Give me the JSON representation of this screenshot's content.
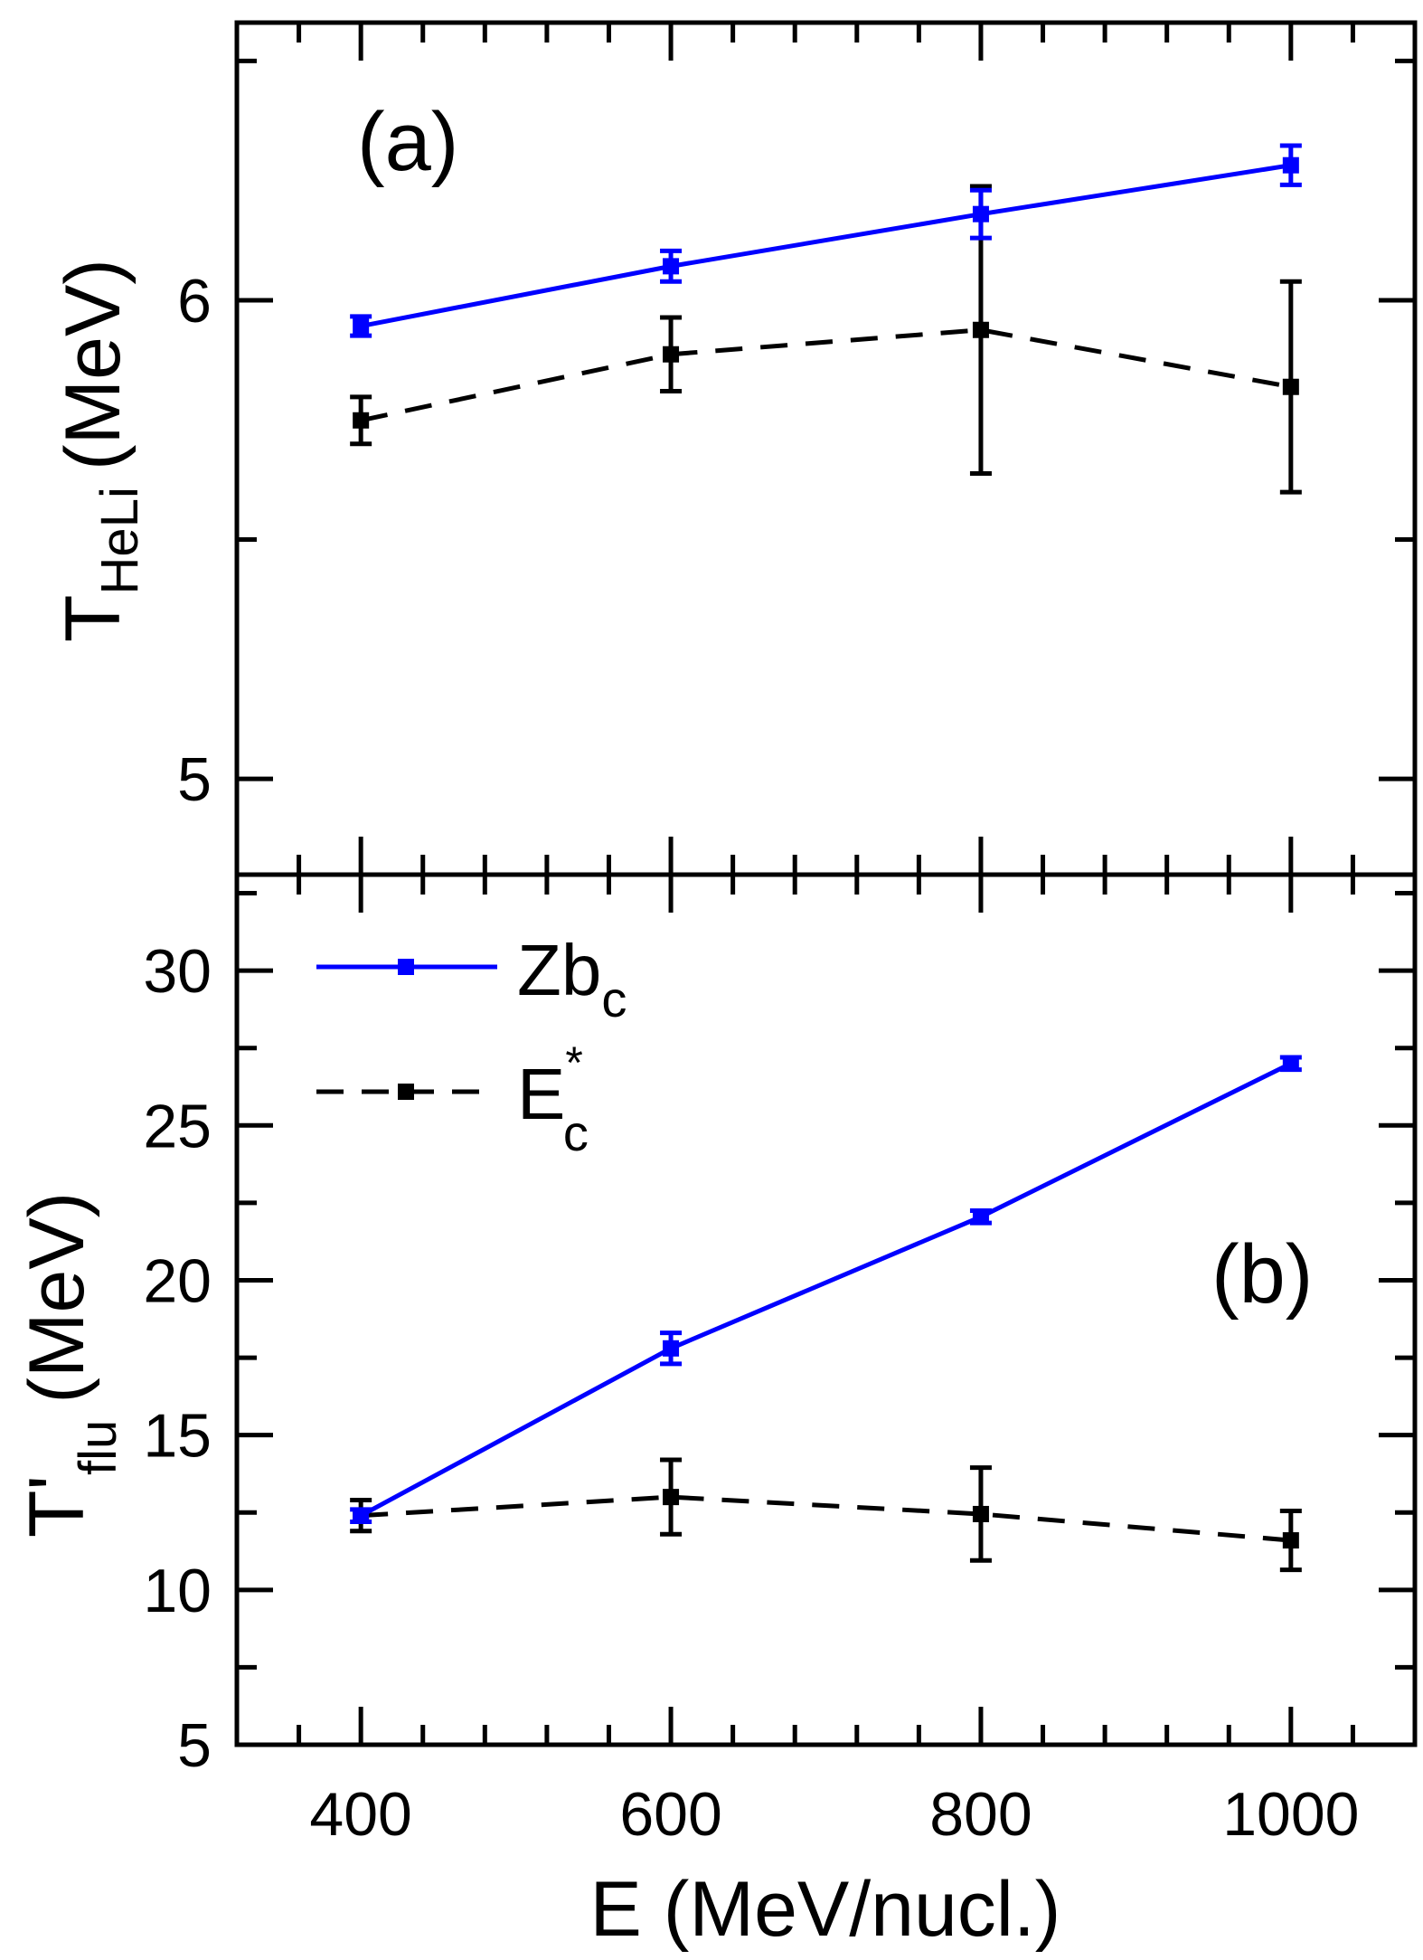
{
  "chart_data": [
    {
      "type": "line",
      "panel_label": "(a)",
      "ylabel": {
        "main": "T",
        "sub": "HeLi",
        "unit": "(MeV)"
      },
      "xlim": [
        320,
        1080
      ],
      "ylim": [
        4.8,
        6.58
      ],
      "x": [
        400,
        600,
        800,
        1000
      ],
      "yticks": [
        5,
        6
      ],
      "ytick_labels": [
        "5",
        "6"
      ],
      "yminor": [
        5.5,
        6.5
      ],
      "series": [
        {
          "name": "Zbc",
          "color": "#0000ff",
          "dash": "solid",
          "values": [
            5.946,
            6.071,
            6.18,
            6.282
          ],
          "errors": [
            0.02,
            0.032,
            0.05,
            0.041
          ]
        },
        {
          "name": "E*c",
          "color": "#000000",
          "dash": "dashed",
          "values": [
            5.749,
            5.887,
            5.938,
            5.819
          ],
          "errors": [
            0.049,
            0.077,
            0.3,
            0.22
          ]
        }
      ]
    },
    {
      "type": "line",
      "panel_label": "(b)",
      "ylabel": {
        "main": "T'",
        "sub": "flu",
        "unit": "(MeV)"
      },
      "xlabel": "E (MeV/nucl.)",
      "xlim": [
        320,
        1080
      ],
      "ylim": [
        5,
        33.1
      ],
      "x": [
        400,
        600,
        800,
        1000
      ],
      "xticks": [
        400,
        600,
        800,
        1000
      ],
      "xtick_labels": [
        "400",
        "600",
        "800",
        "1000"
      ],
      "yticks": [
        5,
        10,
        15,
        20,
        25,
        30
      ],
      "ytick_labels": [
        "5",
        "10",
        "15",
        "20",
        "25",
        "30"
      ],
      "yminor": [
        7.5,
        12.5,
        17.5,
        22.5,
        27.5,
        32.5
      ],
      "legend": {
        "position": "top-left",
        "entries": [
          {
            "main": "Zb",
            "sub": "c",
            "sup": ""
          },
          {
            "main": "E",
            "sub": "c",
            "sup": "*"
          }
        ]
      },
      "series": [
        {
          "name": "Zbc",
          "color": "#0000ff",
          "dash": "solid",
          "values": [
            12.4,
            17.8,
            22.05,
            27.0
          ],
          "errors": [
            0.2,
            0.5,
            0.2,
            0.2
          ]
        },
        {
          "name": "E*c",
          "color": "#000000",
          "dash": "dashed",
          "values": [
            12.4,
            13.0,
            12.45,
            11.6
          ],
          "errors": [
            0.5,
            1.2,
            1.5,
            0.95
          ]
        }
      ]
    }
  ]
}
